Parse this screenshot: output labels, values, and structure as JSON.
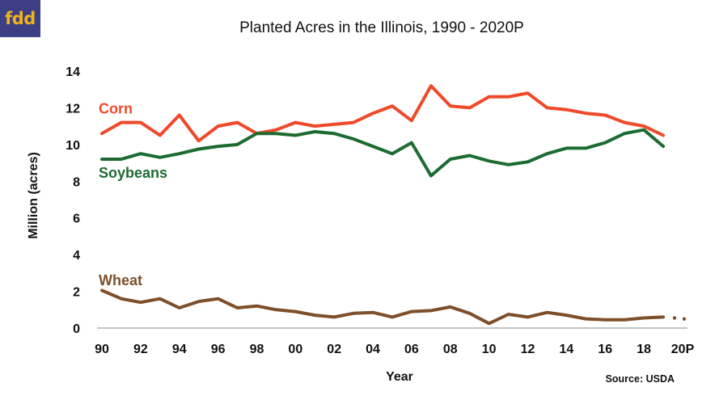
{
  "logo_text": "fdd",
  "chart_data": {
    "type": "line",
    "title": "Planted Acres in the Illinois, 1990 - 2020P",
    "xlabel": "Year",
    "ylabel": "Million (acres)",
    "source": "Source: USDA",
    "ylim": [
      0,
      14
    ],
    "yticks": [
      0,
      2,
      4,
      6,
      8,
      10,
      12,
      14
    ],
    "xlim": [
      1990,
      2020
    ],
    "xticks": [
      {
        "year": 1990,
        "label": "90"
      },
      {
        "year": 1992,
        "label": "92"
      },
      {
        "year": 1994,
        "label": "94"
      },
      {
        "year": 1996,
        "label": "96"
      },
      {
        "year": 1998,
        "label": "98"
      },
      {
        "year": 2000,
        "label": "00"
      },
      {
        "year": 2002,
        "label": "02"
      },
      {
        "year": 2004,
        "label": "04"
      },
      {
        "year": 2006,
        "label": "06"
      },
      {
        "year": 2008,
        "label": "08"
      },
      {
        "year": 2010,
        "label": "10"
      },
      {
        "year": 2012,
        "label": "12"
      },
      {
        "year": 2014,
        "label": "14"
      },
      {
        "year": 2016,
        "label": "16"
      },
      {
        "year": 2018,
        "label": "18"
      },
      {
        "year": 2020,
        "label": "20P"
      }
    ],
    "x": [
      1990,
      1991,
      1992,
      1993,
      1994,
      1995,
      1996,
      1997,
      1998,
      1999,
      2000,
      2001,
      2002,
      2003,
      2004,
      2005,
      2006,
      2007,
      2008,
      2009,
      2010,
      2011,
      2012,
      2013,
      2014,
      2015,
      2016,
      2017,
      2018,
      2019
    ],
    "series": [
      {
        "name": "Corn",
        "color": "#f0492a",
        "values": [
          10.6,
          11.2,
          11.2,
          10.5,
          11.6,
          10.2,
          11.0,
          11.2,
          10.6,
          10.8,
          11.2,
          11.0,
          11.1,
          11.2,
          11.7,
          12.1,
          11.3,
          13.2,
          12.1,
          12.0,
          12.6,
          12.6,
          12.8,
          12.0,
          11.9,
          11.7,
          11.6,
          11.2,
          11.0,
          10.5
        ]
      },
      {
        "name": "Soybeans",
        "color": "#1d6b31",
        "values": [
          9.2,
          9.2,
          9.5,
          9.3,
          9.5,
          9.75,
          9.9,
          10.0,
          10.6,
          10.6,
          10.5,
          10.7,
          10.6,
          10.3,
          9.9,
          9.5,
          10.1,
          8.3,
          9.2,
          9.4,
          9.1,
          8.9,
          9.05,
          9.5,
          9.8,
          9.8,
          10.1,
          10.6,
          10.8,
          9.9
        ]
      },
      {
        "name": "Wheat",
        "color": "#7d4f2a",
        "values": [
          2.05,
          1.6,
          1.4,
          1.6,
          1.1,
          1.45,
          1.6,
          1.1,
          1.2,
          1.0,
          0.9,
          0.7,
          0.6,
          0.8,
          0.85,
          0.6,
          0.9,
          0.95,
          1.15,
          0.8,
          0.25,
          0.75,
          0.6,
          0.85,
          0.7,
          0.5,
          0.45,
          0.45,
          0.55,
          0.6
        ]
      }
    ],
    "wheat_2020P": [
      0.55,
      0.5
    ]
  }
}
